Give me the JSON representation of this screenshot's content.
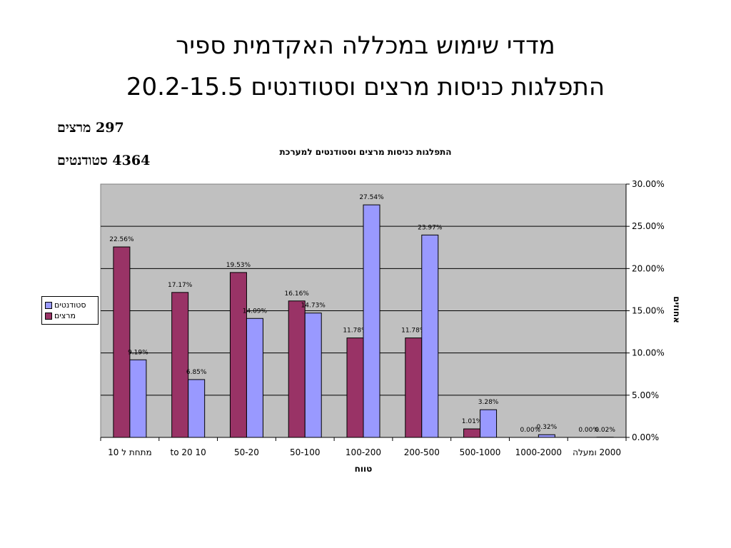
{
  "slide": {
    "title_line1": "מדדי שימוש במכללה האקדמית ספיר",
    "title_line2": "התפלגות כניסות מרצים וסטודנטים 20.2-15.5",
    "count_lecturers": "297 מרצים",
    "count_students": "4364 סטודנטים"
  },
  "chart_data": {
    "type": "bar",
    "title": "התפלגות כניסות מרצים וסטודנטים למערכת",
    "xlabel": "טווח",
    "ylabel": "אחוזים",
    "categories": [
      "מתחת ל 10",
      "10 to 20",
      "50-20",
      "50-100",
      "100-200",
      "200-500",
      "500-1000",
      "1000-2000",
      "2000 ומעלה"
    ],
    "series": [
      {
        "name": "מרצים",
        "color": "#993366",
        "values": [
          22.56,
          17.17,
          19.53,
          16.16,
          11.78,
          11.78,
          1.01,
          0.0,
          0.0
        ],
        "labels": [
          "22.56%",
          "17.17%",
          "19.53%",
          "16.16%",
          "11.78%",
          "11.78%",
          "1.01%",
          "0.00%",
          "0.00%"
        ]
      },
      {
        "name": "סטודנטים",
        "color": "#9999FF",
        "values": [
          9.19,
          6.85,
          14.09,
          14.73,
          27.54,
          23.97,
          3.28,
          0.32,
          0.02
        ],
        "labels": [
          "9.19%",
          "6.85%",
          "14.09%",
          "14.73%",
          "27.54%",
          "23.97%",
          "3.28%",
          "0.32%",
          "0.02%"
        ]
      }
    ],
    "ylim": [
      0,
      30
    ],
    "y_ticks": [
      "0.00%",
      "5.00%",
      "10.00%",
      "15.00%",
      "20.00%",
      "25.00%",
      "30.00%"
    ],
    "y_axis_side": "right",
    "plot_background": "#C0C0C0",
    "grid": true,
    "legend_position": "left"
  }
}
